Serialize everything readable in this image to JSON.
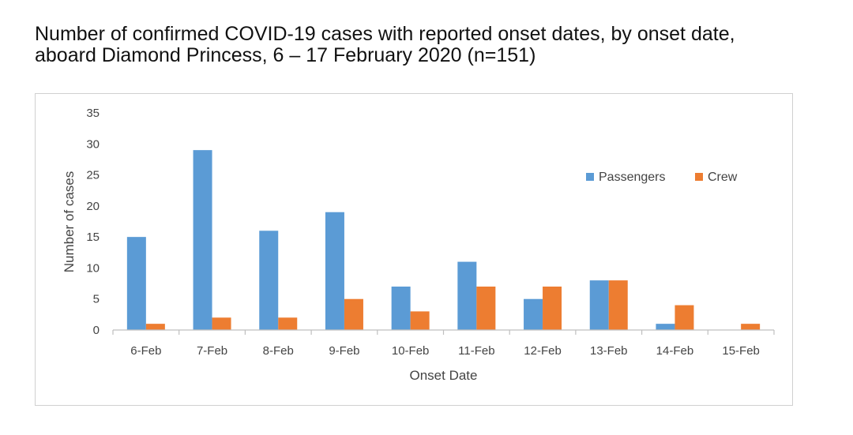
{
  "title_line1": "Number of confirmed COVID-19 cases with reported onset dates, by onset date,",
  "title_line2": "aboard Diamond Princess, 6 – 17 February 2020 (n=151)",
  "chart_data": {
    "type": "bar",
    "categories": [
      "6-Feb",
      "7-Feb",
      "8-Feb",
      "9-Feb",
      "10-Feb",
      "11-Feb",
      "12-Feb",
      "13-Feb",
      "14-Feb",
      "15-Feb"
    ],
    "series": [
      {
        "name": "Passengers",
        "color": "#5B9BD5",
        "values": [
          15,
          29,
          16,
          19,
          7,
          11,
          5,
          8,
          1,
          0
        ]
      },
      {
        "name": "Crew",
        "color": "#ED7D31",
        "values": [
          1,
          2,
          2,
          5,
          3,
          7,
          7,
          8,
          4,
          1
        ]
      }
    ],
    "xlabel": "Onset Date",
    "ylabel": "Number of cases",
    "ylim": [
      0,
      35
    ],
    "yticks": [
      0,
      5,
      10,
      15,
      20,
      25,
      30,
      35
    ],
    "grid": false,
    "legend": "top-right"
  }
}
